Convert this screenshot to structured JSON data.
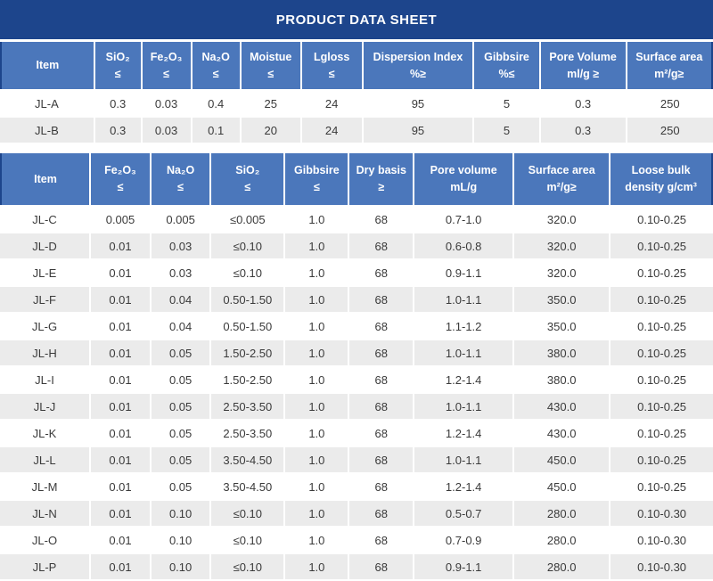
{
  "page_title": "PRODUCT DATA SHEET",
  "colors": {
    "title_bar_bg": "#1d458c",
    "header_bg": "#4b77bb",
    "row_alt_bg": "#ebebeb",
    "row_bg": "#ffffff",
    "header_text": "#ffffff",
    "body_text": "#3a3a3a"
  },
  "table1": {
    "headers": [
      "Item",
      "SiO₂\n≤",
      "Fe₂O₃\n≤",
      "Na₂O\n≤",
      "Moistue\n≤",
      "Lgloss\n≤",
      "Dispersion Index\n%≥",
      "Gibbsire\n%≤",
      "Pore Volume\nml/g ≥",
      "Surface area\nm²/g≥"
    ],
    "rows": [
      [
        "JL-A",
        "0.3",
        "0.03",
        "0.4",
        "25",
        "24",
        "95",
        "5",
        "0.3",
        "250"
      ],
      [
        "JL-B",
        "0.3",
        "0.03",
        "0.1",
        "20",
        "24",
        "95",
        "5",
        "0.3",
        "250"
      ]
    ]
  },
  "table2": {
    "headers": [
      "Item",
      "Fe₂O₃\n≤",
      "Na₂O\n≤",
      "SiO₂\n≤",
      "Gibbsire\n≤",
      "Dry basis\n≥",
      "Pore volume\nmL/g",
      "Surface area\nm²/g≥",
      "Loose bulk\ndensity g/cm³"
    ],
    "rows": [
      [
        "JL-C",
        "0.005",
        "0.005",
        "≤0.005",
        "1.0",
        "68",
        "0.7-1.0",
        "320.0",
        "0.10-0.25"
      ],
      [
        "JL-D",
        "0.01",
        "0.03",
        "≤0.10",
        "1.0",
        "68",
        "0.6-0.8",
        "320.0",
        "0.10-0.25"
      ],
      [
        "JL-E",
        "0.01",
        "0.03",
        "≤0.10",
        "1.0",
        "68",
        "0.9-1.1",
        "320.0",
        "0.10-0.25"
      ],
      [
        "JL-F",
        "0.01",
        "0.04",
        "0.50-1.50",
        "1.0",
        "68",
        "1.0-1.1",
        "350.0",
        "0.10-0.25"
      ],
      [
        "JL-G",
        "0.01",
        "0.04",
        "0.50-1.50",
        "1.0",
        "68",
        "1.1-1.2",
        "350.0",
        "0.10-0.25"
      ],
      [
        "JL-H",
        "0.01",
        "0.05",
        "1.50-2.50",
        "1.0",
        "68",
        "1.0-1.1",
        "380.0",
        "0.10-0.25"
      ],
      [
        "JL-I",
        "0.01",
        "0.05",
        "1.50-2.50",
        "1.0",
        "68",
        "1.2-1.4",
        "380.0",
        "0.10-0.25"
      ],
      [
        "JL-J",
        "0.01",
        "0.05",
        "2.50-3.50",
        "1.0",
        "68",
        "1.0-1.1",
        "430.0",
        "0.10-0.25"
      ],
      [
        "JL-K",
        "0.01",
        "0.05",
        "2.50-3.50",
        "1.0",
        "68",
        "1.2-1.4",
        "430.0",
        "0.10-0.25"
      ],
      [
        "JL-L",
        "0.01",
        "0.05",
        "3.50-4.50",
        "1.0",
        "68",
        "1.0-1.1",
        "450.0",
        "0.10-0.25"
      ],
      [
        "JL-M",
        "0.01",
        "0.05",
        "3.50-4.50",
        "1.0",
        "68",
        "1.2-1.4",
        "450.0",
        "0.10-0.25"
      ],
      [
        "JL-N",
        "0.01",
        "0.10",
        "≤0.10",
        "1.0",
        "68",
        "0.5-0.7",
        "280.0",
        "0.10-0.30"
      ],
      [
        "JL-O",
        "0.01",
        "0.10",
        "≤0.10",
        "1.0",
        "68",
        "0.7-0.9",
        "280.0",
        "0.10-0.30"
      ],
      [
        "JL-P",
        "0.01",
        "0.10",
        "≤0.10",
        "1.0",
        "68",
        "0.9-1.1",
        "280.0",
        "0.10-0.30"
      ]
    ]
  }
}
